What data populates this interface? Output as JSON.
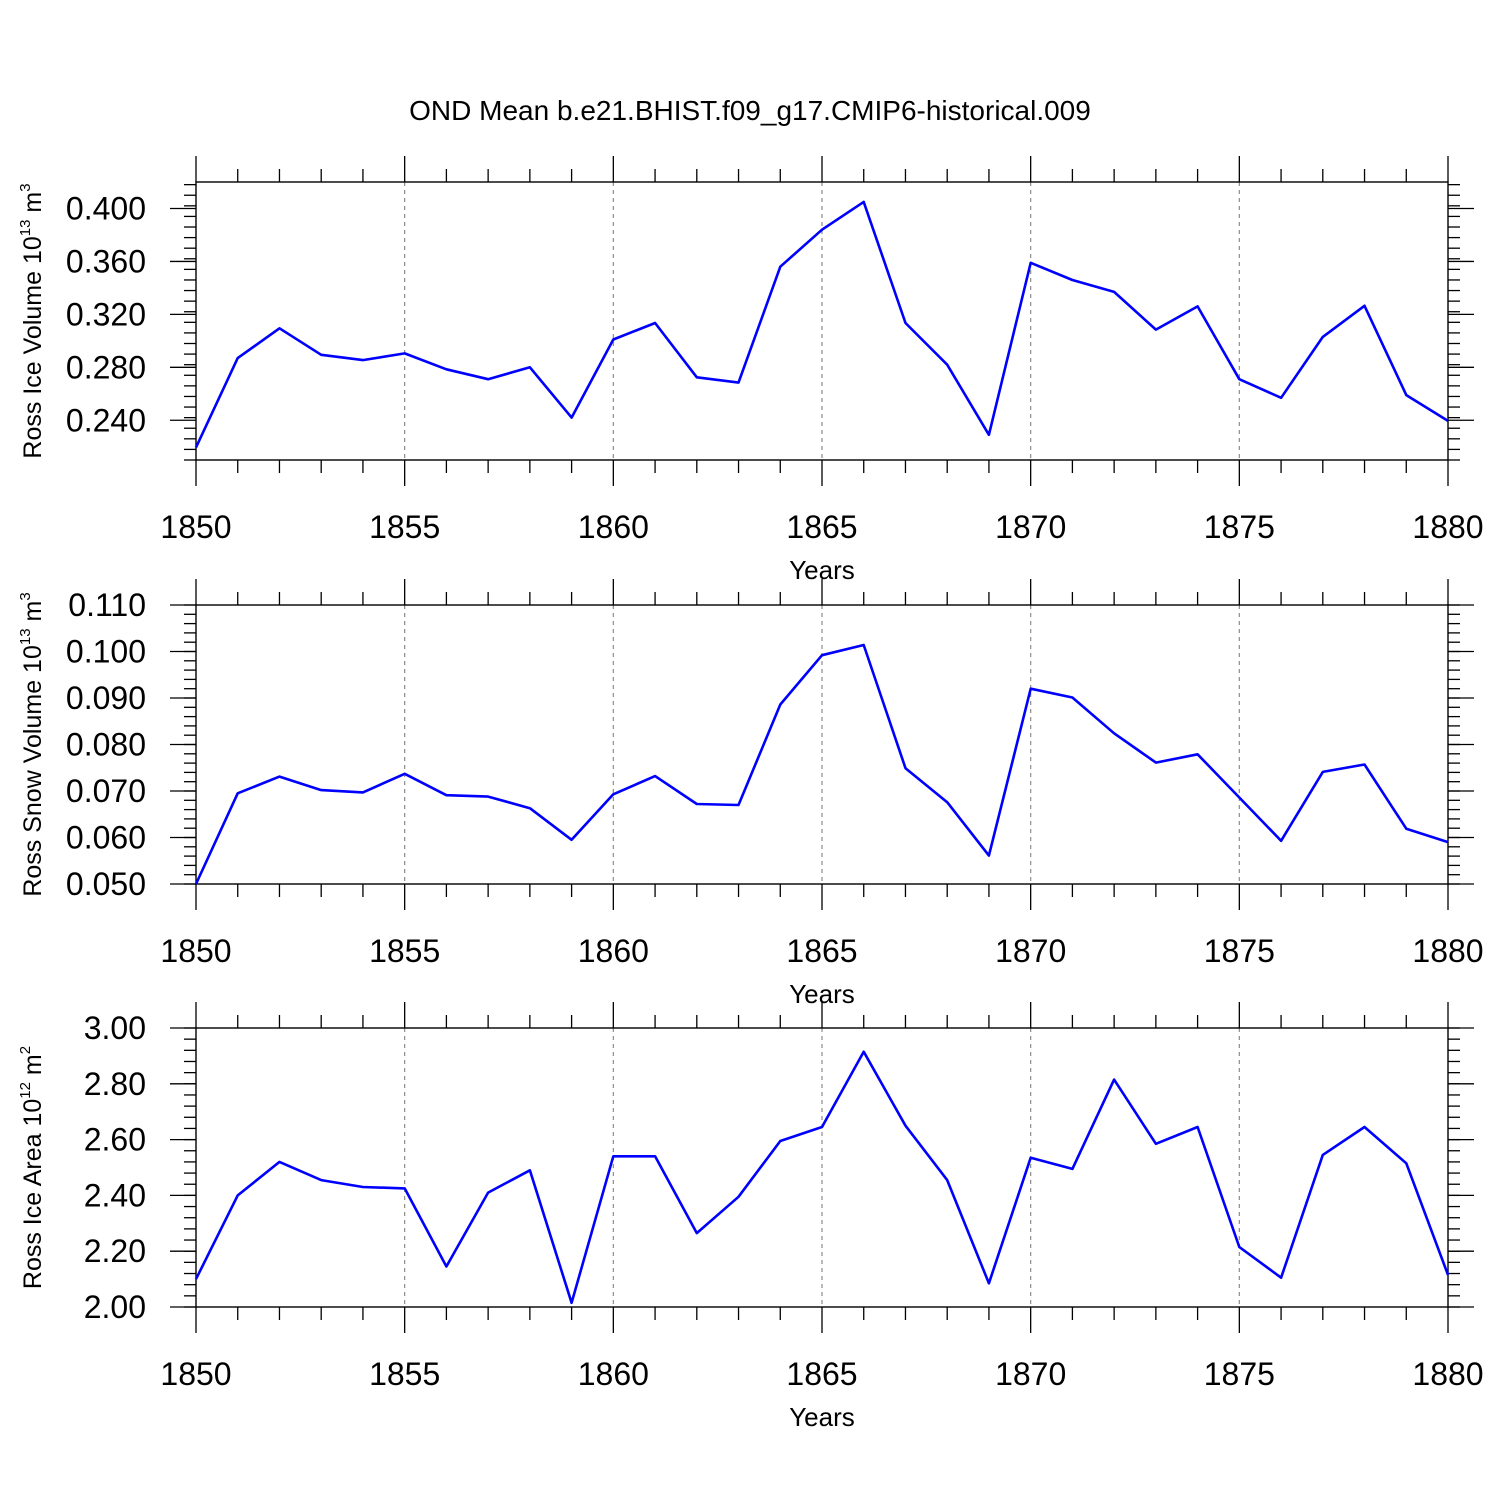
{
  "title": "OND Mean b.e21.BHIST.f09_g17.CMIP6-historical.009",
  "colors": {
    "series": "#0000ff",
    "axes": "#000000",
    "gridline": "#8c8c8c"
  },
  "chart_data": [
    {
      "type": "line",
      "ylabel": {
        "text": "Ross Ice Volume 10",
        "exp": "13",
        "unit": "m",
        "unit_exp": "3"
      },
      "xlabel": "Years",
      "xlim": [
        1850,
        1880
      ],
      "ylim": [
        0.21,
        0.42
      ],
      "xticks": [
        1850,
        1855,
        1860,
        1865,
        1870,
        1875,
        1880
      ],
      "yticks": [
        0.24,
        0.28,
        0.32,
        0.36,
        0.4
      ],
      "ytick_labels": [
        "0.240",
        "0.280",
        "0.320",
        "0.360",
        "0.400"
      ],
      "yminor_step": 0.008,
      "grid": "vertical dashed at major x ticks",
      "x": [
        1850,
        1851,
        1852,
        1853,
        1854,
        1855,
        1856,
        1857,
        1858,
        1859,
        1860,
        1861,
        1862,
        1863,
        1864,
        1865,
        1866,
        1867,
        1868,
        1869,
        1870,
        1871,
        1872,
        1873,
        1874,
        1875,
        1876,
        1877,
        1878,
        1879,
        1880
      ],
      "values": [
        0.2195,
        0.287,
        0.3095,
        0.2895,
        0.2855,
        0.2905,
        0.2785,
        0.271,
        0.28,
        0.242,
        0.301,
        0.3135,
        0.2725,
        0.2685,
        0.356,
        0.384,
        0.405,
        0.3135,
        0.282,
        0.229,
        0.359,
        0.346,
        0.337,
        0.3085,
        0.326,
        0.271,
        0.257,
        0.303,
        0.3265,
        0.259,
        0.2395
      ]
    },
    {
      "type": "line",
      "ylabel": {
        "text": "Ross Snow Volume 10",
        "exp": "13",
        "unit": "m",
        "unit_exp": "3"
      },
      "xlabel": "Years",
      "xlim": [
        1850,
        1880
      ],
      "ylim": [
        0.05,
        0.11
      ],
      "xticks": [
        1850,
        1855,
        1860,
        1865,
        1870,
        1875,
        1880
      ],
      "yticks": [
        0.05,
        0.06,
        0.07,
        0.08,
        0.09,
        0.1,
        0.11
      ],
      "ytick_labels": [
        "0.050",
        "0.060",
        "0.070",
        "0.080",
        "0.090",
        "0.100",
        "0.110"
      ],
      "yminor_step": 0.002,
      "grid": "vertical dashed at major x ticks",
      "x": [
        1850,
        1851,
        1852,
        1853,
        1854,
        1855,
        1856,
        1857,
        1858,
        1859,
        1860,
        1861,
        1862,
        1863,
        1864,
        1865,
        1866,
        1867,
        1868,
        1869,
        1870,
        1871,
        1872,
        1873,
        1874,
        1875,
        1876,
        1877,
        1878,
        1879,
        1880
      ],
      "values": [
        0.05,
        0.0695,
        0.0731,
        0.0702,
        0.0697,
        0.0737,
        0.0691,
        0.0688,
        0.0663,
        0.0595,
        0.0693,
        0.0732,
        0.0672,
        0.067,
        0.0886,
        0.0992,
        0.1014,
        0.0749,
        0.0676,
        0.0561,
        0.092,
        0.0901,
        0.0824,
        0.0761,
        0.0779,
        0.0686,
        0.0593,
        0.0741,
        0.0757,
        0.0619,
        0.059
      ]
    },
    {
      "type": "line",
      "ylabel": {
        "text": "Ross Ice Area 10",
        "exp": "12",
        "unit": "m",
        "unit_exp": "2"
      },
      "xlabel": "Years",
      "xlim": [
        1850,
        1880
      ],
      "ylim": [
        2.0,
        3.0
      ],
      "xticks": [
        1850,
        1855,
        1860,
        1865,
        1870,
        1875,
        1880
      ],
      "yticks": [
        2.0,
        2.2,
        2.4,
        2.6,
        2.8,
        3.0
      ],
      "ytick_labels": [
        "2.00",
        "2.20",
        "2.40",
        "2.60",
        "2.80",
        "3.00"
      ],
      "yminor_step": 0.04,
      "grid": "vertical dashed at major x ticks",
      "x": [
        1850,
        1851,
        1852,
        1853,
        1854,
        1855,
        1856,
        1857,
        1858,
        1859,
        1860,
        1861,
        1862,
        1863,
        1864,
        1865,
        1866,
        1867,
        1868,
        1869,
        1870,
        1871,
        1872,
        1873,
        1874,
        1875,
        1876,
        1877,
        1878,
        1879,
        1880
      ],
      "values": [
        2.1,
        2.4,
        2.52,
        2.455,
        2.43,
        2.425,
        2.145,
        2.41,
        2.49,
        2.015,
        2.54,
        2.54,
        2.265,
        2.395,
        2.595,
        2.645,
        2.915,
        2.65,
        2.455,
        2.085,
        2.535,
        2.495,
        2.815,
        2.585,
        2.645,
        2.215,
        2.105,
        2.545,
        2.645,
        2.515,
        2.115
      ]
    }
  ]
}
